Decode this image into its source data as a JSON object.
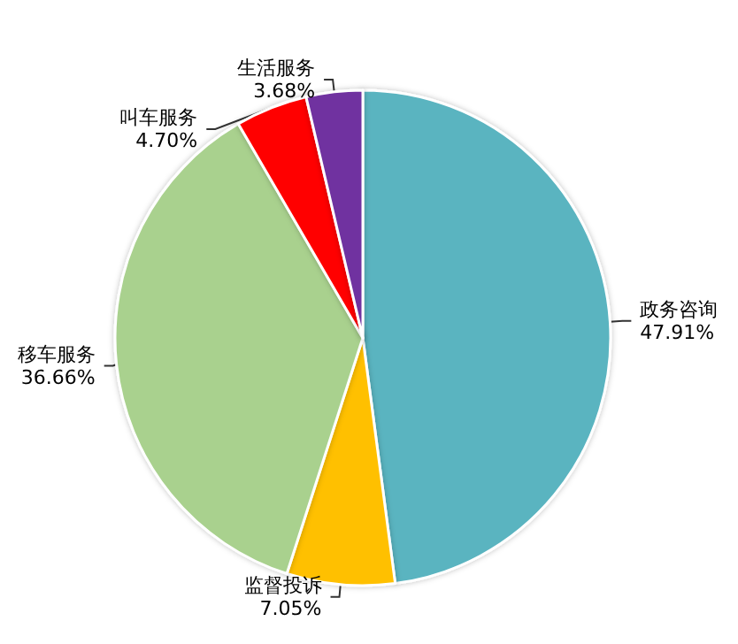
{
  "chart_data": {
    "type": "pie",
    "categories": [
      "政务咨询",
      "监督投诉",
      "移车服务",
      "叫车服务",
      "生活服务"
    ],
    "values": [
      47.91,
      7.05,
      36.66,
      4.7,
      3.68
    ],
    "colors": [
      "#5ab4c0",
      "#ffc000",
      "#a9d18e",
      "#ff0000",
      "#7030a0"
    ],
    "value_labels": [
      "47.91%",
      "7.05%",
      "36.66%",
      "4.70%",
      "3.68%"
    ]
  }
}
